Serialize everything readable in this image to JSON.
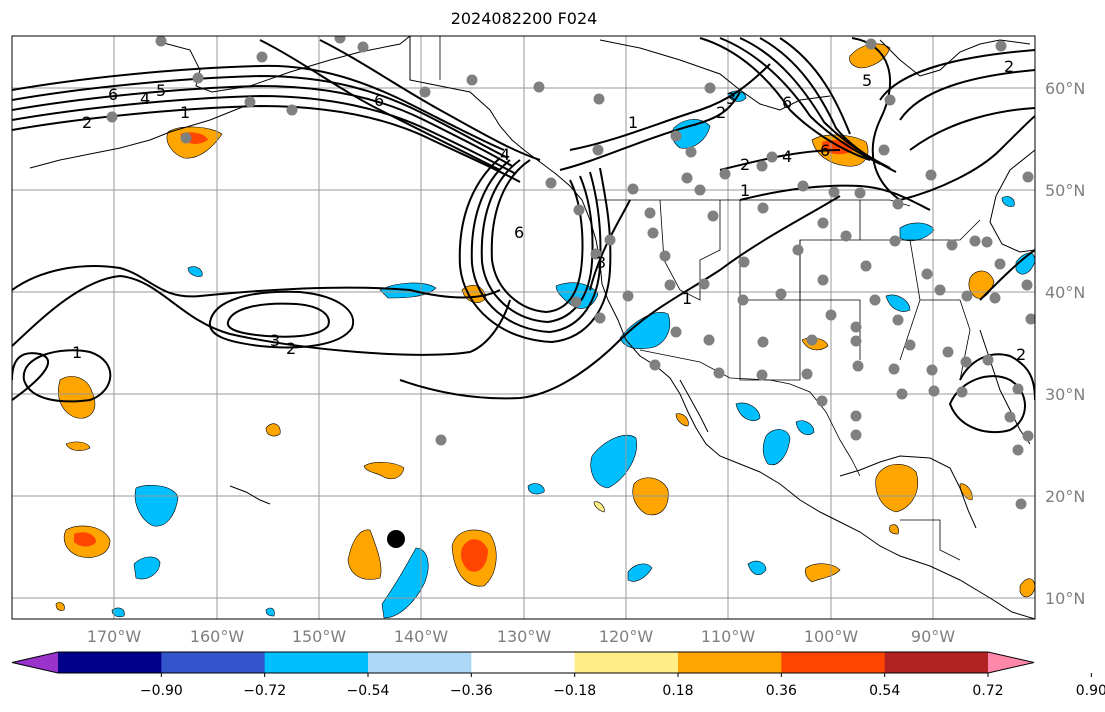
{
  "title": "2024082200 F024",
  "latitudes": [
    {
      "value": 60,
      "label": "60°N"
    },
    {
      "value": 50,
      "label": "50°N"
    },
    {
      "value": 40,
      "label": "40°N"
    },
    {
      "value": 30,
      "label": "30°N"
    },
    {
      "value": 20,
      "label": "20°N"
    },
    {
      "value": 10,
      "label": "10°N"
    }
  ],
  "longitudes": [
    {
      "value": -170,
      "label": "170°W"
    },
    {
      "value": -160,
      "label": "160°W"
    },
    {
      "value": -150,
      "label": "150°W"
    },
    {
      "value": -140,
      "label": "140°W"
    },
    {
      "value": -130,
      "label": "130°W"
    },
    {
      "value": -120,
      "label": "120°W"
    },
    {
      "value": -110,
      "label": "110°W"
    },
    {
      "value": -100,
      "label": "100°W"
    },
    {
      "value": -90,
      "label": "90°W"
    }
  ],
  "extent": {
    "lon_min": -180,
    "lon_max": -80,
    "lat_min": 8,
    "lat_max": 65
  },
  "colorbar": {
    "colors": [
      "#9933cc",
      "#00008b",
      "#3355cc",
      "#00bfff",
      "#add8f6",
      "#ffffff",
      "#ffee88",
      "#ffa500",
      "#ff4500",
      "#b22222",
      "#ff88aa"
    ],
    "ticks": [
      "−0.90",
      "−0.72",
      "−0.54",
      "−0.36",
      "−0.18",
      "0.18",
      "0.36",
      "0.54",
      "0.72",
      "0.90"
    ]
  },
  "contour_labels": [
    "6",
    "4",
    "5",
    "1",
    "2",
    "6",
    "1",
    "2",
    "3",
    "6",
    "5",
    "4",
    "2",
    "1",
    "6",
    "6",
    "3",
    "1",
    "3",
    "2",
    "1",
    "2",
    "4",
    "2"
  ],
  "marker": {
    "lon": -142.5,
    "lat": 15.8
  }
}
